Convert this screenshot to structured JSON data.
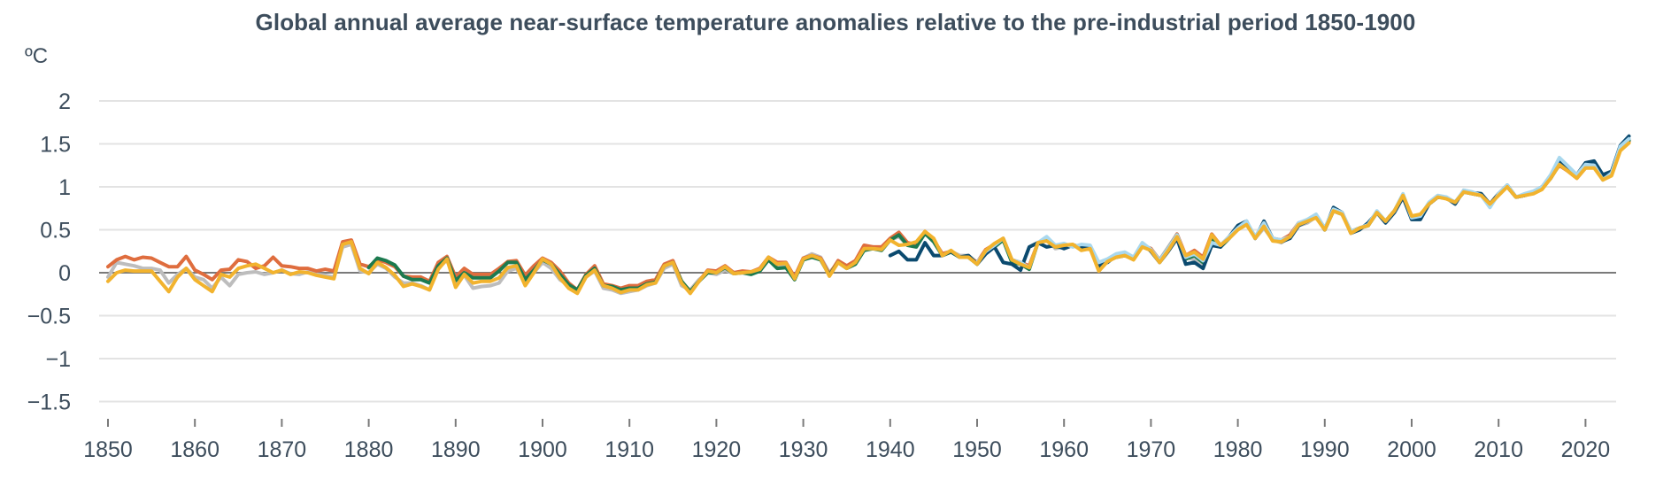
{
  "chart_data": {
    "type": "line",
    "title": "Global annual average near-surface temperature anomalies relative to the pre-industrial period 1850-1900",
    "ylabel": "ºC",
    "xlabel": "",
    "ylim": [
      -1.5,
      2
    ],
    "xlim": [
      1850,
      2024
    ],
    "grid": true,
    "legend": "none",
    "y_ticks": [
      "2",
      "1.5",
      "1",
      "0.5",
      "0",
      "−0.5",
      "−1",
      "−1.5"
    ],
    "y_tick_values": [
      2,
      1.5,
      1,
      0.5,
      0,
      -0.5,
      -1,
      -1.5
    ],
    "x_ticks": [
      "1850",
      "1860",
      "1870",
      "1880",
      "1890",
      "1900",
      "1910",
      "1920",
      "1930",
      "1940",
      "1950",
      "1960",
      "1970",
      "1980",
      "1990",
      "2000",
      "2010",
      "2020"
    ],
    "x_tick_values": [
      1850,
      1860,
      1870,
      1880,
      1890,
      1900,
      1910,
      1920,
      1930,
      1940,
      1950,
      1960,
      1970,
      1980,
      1990,
      2000,
      2010,
      2020
    ],
    "series": [
      {
        "name": "gray-series",
        "color": "#BDBDBD",
        "start": 1850,
        "values": [
          -0.05,
          0.12,
          0.1,
          0.08,
          0.05,
          0.05,
          0.03,
          -0.12,
          -0.02,
          0.05,
          -0.05,
          -0.08,
          -0.18,
          -0.05,
          -0.15,
          -0.02,
          0.0,
          0.01,
          -0.02,
          0.0,
          0.03,
          -0.01,
          -0.02,
          0.01,
          -0.02,
          -0.03,
          -0.05,
          0.3,
          0.33,
          0.02,
          0.0,
          0.1,
          0.05,
          -0.05,
          -0.12,
          -0.12,
          -0.15,
          -0.2,
          0.05,
          0.15,
          -0.12,
          -0.03,
          -0.18,
          -0.16,
          -0.15,
          -0.12,
          0.02,
          0.05,
          -0.12,
          0.0,
          0.12,
          0.05,
          -0.08,
          -0.15,
          -0.22,
          -0.05,
          0.02,
          -0.18,
          -0.2,
          -0.24,
          -0.22,
          -0.2,
          -0.15,
          -0.12,
          0.05,
          0.1,
          -0.15,
          -0.2,
          -0.08,
          0.0,
          -0.02,
          0.03,
          -0.01,
          0.01,
          0.0,
          0.04,
          0.18,
          0.08,
          0.1,
          -0.05,
          0.17,
          0.22,
          0.18,
          0.0,
          0.12,
          0.07,
          0.13,
          0.3,
          0.3,
          0.28,
          0.38,
          0.42,
          0.32,
          0.35,
          0.45,
          0.38,
          0.22,
          0.25,
          0.2,
          0.2,
          0.12,
          0.25,
          0.32,
          0.38,
          0.15,
          0.1,
          0.05,
          0.35,
          0.4,
          0.28,
          0.3,
          0.33,
          0.28,
          0.3,
          0.08,
          0.15,
          0.2,
          0.22,
          0.18,
          0.32,
          0.28,
          0.15,
          0.3,
          0.45,
          0.18,
          0.15,
          0.1,
          0.38,
          0.3,
          0.4,
          0.5,
          0.58,
          0.4,
          0.52,
          0.38,
          0.35,
          0.42,
          0.55,
          0.58,
          0.65,
          0.5,
          0.72,
          0.68,
          0.48,
          0.52,
          0.55,
          0.7,
          0.6,
          0.72,
          0.9,
          0.65,
          0.66,
          0.8,
          0.88,
          0.87,
          0.82,
          0.95,
          0.92,
          0.9,
          0.78,
          0.92,
          1.0,
          0.88,
          0.9,
          0.93,
          0.98,
          1.1,
          1.28,
          1.2,
          1.12,
          1.25,
          1.24,
          1.08,
          1.15,
          1.45,
          1.55
        ]
      },
      {
        "name": "orange-series",
        "color": "#DF6D3E",
        "start": 1850,
        "values": [
          0.07,
          0.15,
          0.19,
          0.15,
          0.18,
          0.17,
          0.12,
          0.07,
          0.07,
          0.19,
          0.03,
          -0.02,
          -0.08,
          0.03,
          0.04,
          0.15,
          0.13,
          0.05,
          0.08,
          0.18,
          0.08,
          0.07,
          0.05,
          0.05,
          0.02,
          0.04,
          0.02,
          0.36,
          0.38,
          0.1,
          0.07,
          0.15,
          0.12,
          0.07,
          -0.04,
          -0.05,
          -0.05,
          -0.1,
          0.12,
          0.19,
          -0.05,
          0.05,
          -0.02,
          -0.02,
          -0.02,
          0.05,
          0.13,
          0.14,
          -0.03,
          0.08,
          0.17,
          0.12,
          0.02,
          -0.12,
          -0.2,
          -0.02,
          0.08,
          -0.13,
          -0.15,
          -0.18,
          -0.15,
          -0.15,
          -0.1,
          -0.08,
          0.1,
          0.14,
          -0.1,
          -0.22,
          -0.1,
          0.03,
          0.02,
          0.08,
          0.0,
          0.02,
          0.01,
          0.05,
          0.18,
          0.12,
          0.12,
          -0.05,
          0.17,
          0.2,
          0.17,
          -0.02,
          0.14,
          0.08,
          0.14,
          0.32,
          0.3,
          0.3,
          0.4,
          0.47,
          0.35,
          0.33,
          0.48,
          0.38,
          0.22,
          0.25,
          0.18,
          0.18,
          0.12,
          0.27,
          0.33,
          0.4,
          0.15,
          0.12,
          0.08,
          0.35,
          0.38,
          0.3,
          0.32,
          0.32,
          0.3,
          0.3,
          0.05,
          0.14,
          0.18,
          0.2,
          0.16,
          0.32,
          0.28,
          0.14,
          0.28,
          0.45,
          0.2,
          0.26,
          0.18,
          0.45,
          0.32,
          0.42,
          0.52,
          0.58,
          0.42,
          0.55,
          0.4,
          0.38,
          0.44,
          0.58,
          0.6,
          0.66,
          0.52,
          0.72,
          0.7,
          0.48,
          0.52,
          0.56,
          0.7,
          0.6,
          0.72,
          0.9,
          0.66,
          0.66,
          0.8,
          0.88,
          0.87,
          0.82,
          0.94,
          0.92,
          0.9,
          0.8,
          0.92,
          1.0,
          0.88,
          0.9,
          0.93,
          0.98,
          1.12,
          1.25,
          1.18,
          1.1,
          1.22,
          1.24,
          1.1,
          1.15,
          1.45,
          1.53
        ]
      },
      {
        "name": "green-series",
        "color": "#1C7A4F",
        "start": 1880,
        "values": [
          0.06,
          0.17,
          0.14,
          0.09,
          -0.04,
          -0.08,
          -0.08,
          -0.12,
          0.08,
          0.17,
          -0.09,
          0.0,
          -0.06,
          -0.06,
          -0.06,
          0.02,
          0.12,
          0.12,
          -0.08,
          0.03,
          0.15,
          0.1,
          -0.02,
          -0.14,
          -0.2,
          -0.03,
          0.05,
          -0.15,
          -0.16,
          -0.2,
          -0.18,
          -0.18,
          -0.13,
          -0.11,
          0.08,
          0.12,
          -0.1,
          -0.22,
          -0.1,
          0.0,
          0.0,
          0.06,
          -0.01,
          0.0,
          -0.02,
          0.02,
          0.15,
          0.05,
          0.06,
          -0.08,
          0.15,
          0.18,
          0.15,
          -0.03,
          0.12,
          0.05,
          0.1,
          0.26,
          0.28,
          0.26,
          0.38,
          0.44,
          0.32,
          0.3,
          0.46,
          0.36,
          0.2,
          0.24,
          0.18,
          0.18,
          0.1,
          0.24,
          0.3,
          0.38,
          0.12,
          0.1,
          0.04,
          0.35,
          0.38,
          0.3,
          0.3,
          0.32,
          0.28,
          0.28,
          0.06,
          0.14,
          0.18,
          0.2,
          0.16,
          0.32,
          0.26,
          0.14,
          0.28,
          0.44,
          0.16,
          0.2,
          0.12,
          0.4,
          0.3,
          0.4,
          0.52,
          0.58,
          0.42,
          0.54,
          0.38,
          0.36,
          0.42,
          0.56,
          0.6,
          0.66,
          0.5,
          0.72,
          0.68,
          0.48,
          0.52,
          0.55,
          0.7,
          0.6,
          0.72,
          0.9,
          0.64,
          0.66,
          0.8,
          0.88,
          0.87,
          0.82,
          0.94,
          0.92,
          0.9,
          0.79,
          0.92,
          1.0,
          0.88,
          0.9,
          0.93,
          0.98,
          1.1,
          1.26,
          1.19,
          1.11,
          1.23,
          1.24,
          1.09,
          1.15,
          1.45,
          1.54
        ]
      },
      {
        "name": "navy-series",
        "color": "#0B4A6F",
        "start": 1940,
        "values": [
          0.2,
          0.25,
          0.15,
          0.15,
          0.35,
          0.2,
          0.2,
          0.25,
          0.18,
          0.2,
          0.1,
          0.22,
          0.3,
          0.12,
          0.1,
          0.03,
          0.3,
          0.35,
          0.3,
          0.32,
          0.28,
          0.32,
          0.3,
          0.3,
          0.08,
          0.12,
          0.2,
          0.22,
          0.16,
          0.34,
          0.25,
          0.12,
          0.25,
          0.4,
          0.1,
          0.12,
          0.05,
          0.32,
          0.3,
          0.42,
          0.55,
          0.6,
          0.4,
          0.6,
          0.4,
          0.36,
          0.4,
          0.55,
          0.6,
          0.66,
          0.5,
          0.76,
          0.7,
          0.46,
          0.5,
          0.58,
          0.7,
          0.58,
          0.7,
          0.88,
          0.62,
          0.62,
          0.8,
          0.88,
          0.87,
          0.8,
          0.96,
          0.93,
          0.92,
          0.8,
          0.92,
          1.02,
          0.88,
          0.9,
          0.94,
          1.0,
          1.12,
          1.3,
          1.22,
          1.14,
          1.28,
          1.3,
          1.14,
          1.18,
          1.48,
          1.59
        ]
      },
      {
        "name": "lightblue-series",
        "color": "#A9D8EE",
        "start": 1950,
        "values": [
          0.12,
          0.25,
          0.32,
          0.4,
          0.15,
          0.12,
          0.06,
          0.35,
          0.42,
          0.32,
          0.34,
          0.3,
          0.33,
          0.32,
          0.12,
          0.16,
          0.22,
          0.24,
          0.18,
          0.35,
          0.27,
          0.14,
          0.28,
          0.44,
          0.18,
          0.22,
          0.14,
          0.35,
          0.32,
          0.42,
          0.52,
          0.6,
          0.42,
          0.58,
          0.4,
          0.38,
          0.42,
          0.58,
          0.62,
          0.68,
          0.52,
          0.74,
          0.7,
          0.48,
          0.52,
          0.56,
          0.72,
          0.6,
          0.72,
          0.92,
          0.64,
          0.66,
          0.82,
          0.9,
          0.88,
          0.82,
          0.96,
          0.94,
          0.9,
          0.76,
          0.92,
          1.02,
          0.88,
          0.92,
          0.95,
          1.0,
          1.14,
          1.34,
          1.24,
          1.14,
          1.26,
          1.25,
          1.08,
          1.16,
          1.47,
          1.56
        ]
      },
      {
        "name": "yellow-series",
        "color": "#F2B32E",
        "start": 1850,
        "values": [
          -0.1,
          0.0,
          0.03,
          0.02,
          0.02,
          0.02,
          -0.1,
          -0.22,
          -0.05,
          0.05,
          -0.08,
          -0.15,
          -0.22,
          -0.02,
          -0.05,
          0.05,
          0.08,
          0.1,
          0.05,
          0.0,
          0.03,
          -0.02,
          0.01,
          0.0,
          -0.03,
          -0.05,
          -0.07,
          0.33,
          0.36,
          0.05,
          -0.01,
          0.12,
          0.06,
          -0.03,
          -0.16,
          -0.13,
          -0.16,
          -0.2,
          0.04,
          0.16,
          -0.17,
          -0.02,
          -0.12,
          -0.1,
          -0.1,
          -0.06,
          0.06,
          0.08,
          -0.15,
          0.0,
          0.16,
          0.1,
          -0.06,
          -0.18,
          -0.24,
          -0.05,
          0.03,
          -0.15,
          -0.18,
          -0.23,
          -0.2,
          -0.2,
          -0.14,
          -0.12,
          0.08,
          0.12,
          -0.12,
          -0.24,
          -0.1,
          0.02,
          0.0,
          0.07,
          -0.01,
          0.0,
          0.01,
          0.04,
          0.18,
          0.1,
          0.11,
          -0.07,
          0.16,
          0.2,
          0.16,
          -0.04,
          0.12,
          0.05,
          0.12,
          0.28,
          0.28,
          0.27,
          0.38,
          0.32,
          0.33,
          0.36,
          0.48,
          0.4,
          0.2,
          0.26,
          0.18,
          0.18,
          0.1,
          0.26,
          0.34,
          0.4,
          0.15,
          0.1,
          0.06,
          0.35,
          0.37,
          0.3,
          0.32,
          0.33,
          0.26,
          0.28,
          0.02,
          0.13,
          0.18,
          0.2,
          0.15,
          0.3,
          0.26,
          0.12,
          0.26,
          0.42,
          0.2,
          0.24,
          0.16,
          0.44,
          0.32,
          0.4,
          0.5,
          0.56,
          0.4,
          0.54,
          0.37,
          0.36,
          0.42,
          0.56,
          0.6,
          0.64,
          0.5,
          0.72,
          0.68,
          0.46,
          0.52,
          0.55,
          0.7,
          0.6,
          0.72,
          0.9,
          0.66,
          0.68,
          0.8,
          0.88,
          0.86,
          0.82,
          0.94,
          0.92,
          0.9,
          0.8,
          0.9,
          1.0,
          0.88,
          0.9,
          0.92,
          0.97,
          1.1,
          1.26,
          1.18,
          1.1,
          1.22,
          1.22,
          1.08,
          1.13,
          1.42,
          1.51
        ]
      }
    ]
  }
}
